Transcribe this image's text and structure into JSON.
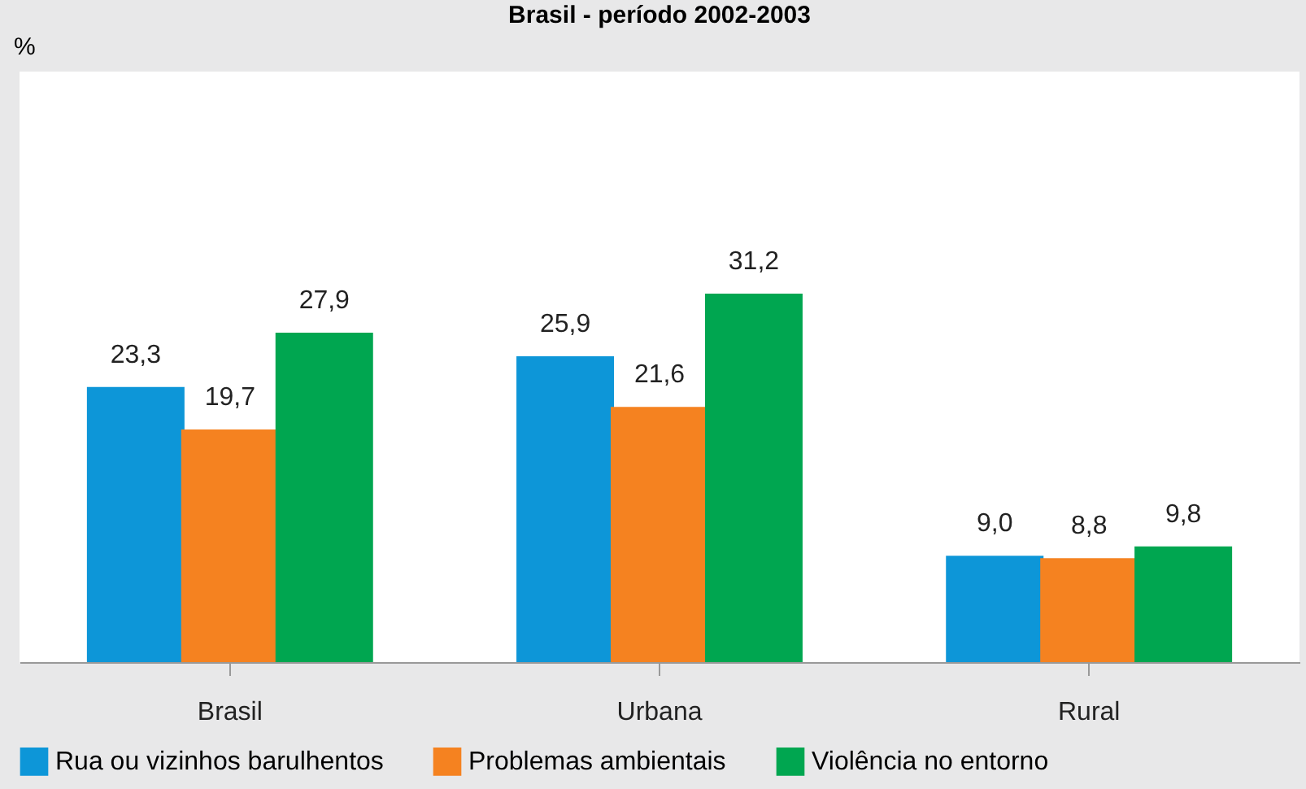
{
  "chart_data": {
    "type": "bar",
    "title": "Brasil - período 2002-2003",
    "ylabel": "%",
    "categories": [
      "Brasil",
      "Urbana",
      "Rural"
    ],
    "series": [
      {
        "name": "Rua ou vizinhos barulhentos",
        "color": "#0d96d8",
        "values": [
          23.3,
          25.9,
          9.0
        ],
        "value_labels": [
          "23,3",
          "25,9",
          "9,0"
        ]
      },
      {
        "name": "Problemas ambientais",
        "color": "#f58220",
        "values": [
          19.7,
          21.6,
          8.8
        ],
        "value_labels": [
          "19,7",
          "21,6",
          "8,8"
        ]
      },
      {
        "name": "Violência no entorno",
        "color": "#00a650",
        "values": [
          27.9,
          31.2,
          9.8
        ],
        "value_labels": [
          "27,9",
          "31,2",
          "9,8"
        ]
      }
    ],
    "ylim": [
      0,
      50
    ],
    "tick_labels": "x",
    "grid": false,
    "legend": "bottom"
  }
}
